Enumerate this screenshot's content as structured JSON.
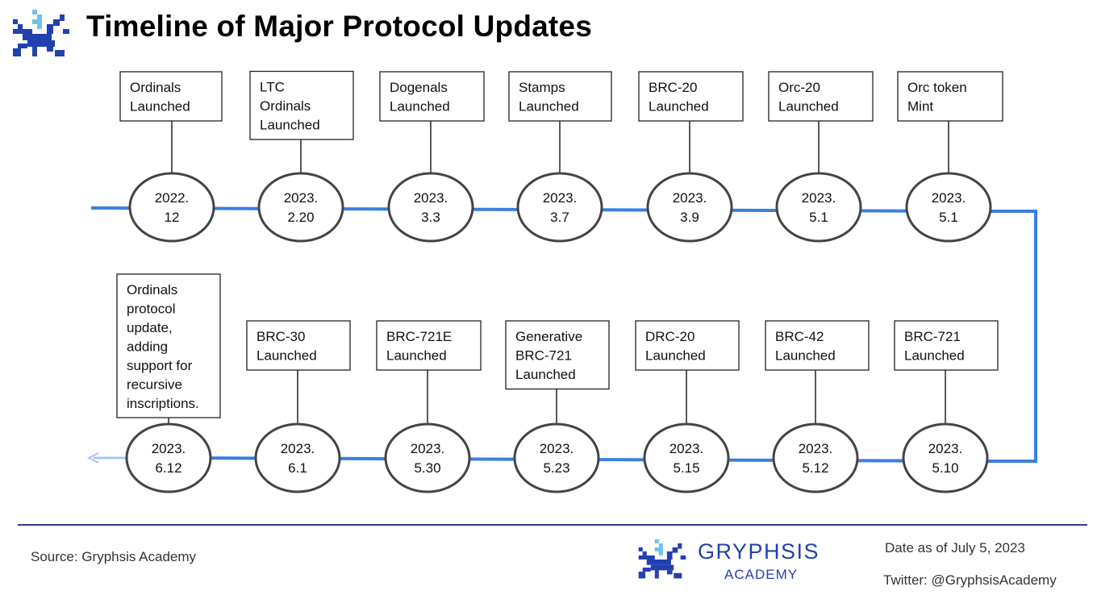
{
  "title": "Timeline of Major Protocol Updates",
  "colors": {
    "line": "#3a7fe0",
    "brand": "#2340b0",
    "footer_rule": "#2a3f8f",
    "logo_light": "#6ec3e8",
    "logo_dark": "#2340b0"
  },
  "events_top": [
    {
      "date": [
        "2022.",
        "12"
      ],
      "label": [
        "Ordinals",
        "Launched"
      ]
    },
    {
      "date": [
        "2023.",
        "2.20"
      ],
      "label": [
        "LTC",
        "Ordinals",
        "Launched"
      ]
    },
    {
      "date": [
        "2023.",
        "3.3"
      ],
      "label": [
        "Dogenals",
        "Launched"
      ]
    },
    {
      "date": [
        "2023.",
        "3.7"
      ],
      "label": [
        "Stamps",
        "Launched"
      ]
    },
    {
      "date": [
        "2023.",
        "3.9"
      ],
      "label": [
        "BRC-20",
        "Launched"
      ]
    },
    {
      "date": [
        "2023.",
        "5.1"
      ],
      "label": [
        "Orc-20",
        "Launched"
      ]
    },
    {
      "date": [
        "2023.",
        "5.1"
      ],
      "label": [
        "Orc token",
        "Mint"
      ]
    }
  ],
  "events_bottom": [
    {
      "date": [
        "2023.",
        "6.12"
      ],
      "label": [
        "Ordinals",
        "protocol",
        "update,",
        "adding",
        "support for",
        "recursive",
        "inscriptions."
      ]
    },
    {
      "date": [
        "2023.",
        "6.1"
      ],
      "label": [
        "BRC-30",
        "Launched"
      ]
    },
    {
      "date": [
        "2023.",
        "5.30"
      ],
      "label": [
        "BRC-721E",
        "Launched"
      ]
    },
    {
      "date": [
        "2023.",
        "5.23"
      ],
      "label": [
        "Generative",
        "BRC-721",
        "Launched"
      ]
    },
    {
      "date": [
        "2023.",
        "5.15"
      ],
      "label": [
        "DRC-20",
        "Launched"
      ]
    },
    {
      "date": [
        "2023.",
        "5.12"
      ],
      "label": [
        "BRC-42",
        "Launched"
      ]
    },
    {
      "date": [
        "2023.",
        "5.10"
      ],
      "label": [
        "BRC-721",
        "Launched"
      ]
    }
  ],
  "footer": {
    "source": "Source: Gryphsis Academy",
    "brand_name": "GRYPHSIS",
    "brand_sub": "ACADEMY",
    "date_note": "Date as of July 5, 2023",
    "twitter": "Twitter: @GryphsisAcademy"
  }
}
